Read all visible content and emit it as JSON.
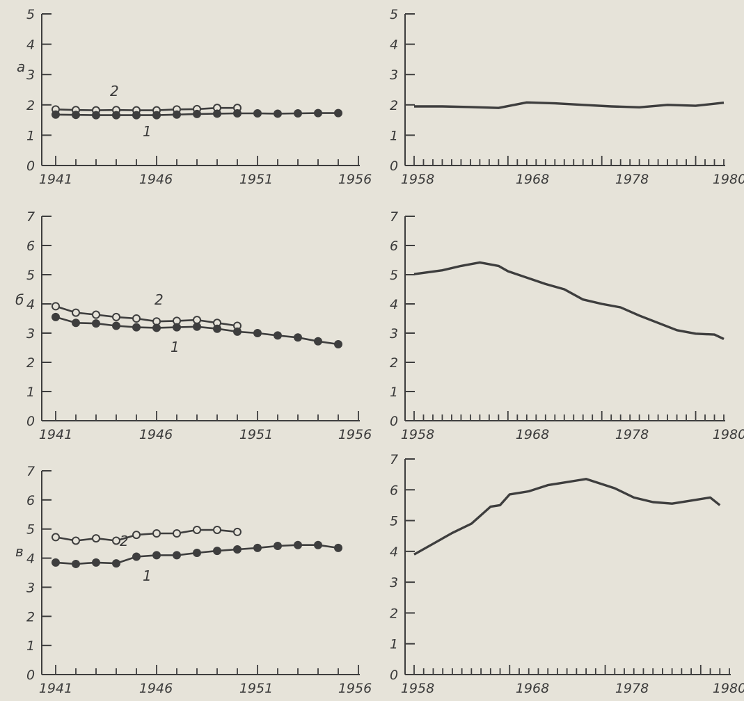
{
  "colors": {
    "ink": "#3e3e3e",
    "paper": "#e6e3d9"
  },
  "chart_data": [
    {
      "type": "line",
      "panel": "a",
      "letter": "a",
      "grid": false,
      "x_ticks": [
        1941,
        1946,
        1951,
        1956
      ],
      "y_ticks": [
        0,
        1,
        2,
        3,
        4,
        5
      ],
      "xlim": [
        1941,
        1956
      ],
      "ylim": [
        0,
        5
      ],
      "series": [
        {
          "tag": "2",
          "marker": "open",
          "points": [
            [
              1941,
              1.85
            ],
            [
              1942,
              1.83
            ],
            [
              1943,
              1.82
            ],
            [
              1944,
              1.83
            ],
            [
              1945,
              1.82
            ],
            [
              1946,
              1.82
            ],
            [
              1947,
              1.85
            ],
            [
              1948,
              1.86
            ],
            [
              1949,
              1.9
            ],
            [
              1950,
              1.9
            ]
          ]
        },
        {
          "tag": "1",
          "marker": "filled",
          "points": [
            [
              1941,
              1.68
            ],
            [
              1942,
              1.67
            ],
            [
              1943,
              1.66
            ],
            [
              1944,
              1.66
            ],
            [
              1945,
              1.66
            ],
            [
              1946,
              1.66
            ],
            [
              1947,
              1.68
            ],
            [
              1948,
              1.7
            ],
            [
              1949,
              1.71
            ],
            [
              1950,
              1.72
            ],
            [
              1951,
              1.72
            ],
            [
              1952,
              1.71
            ],
            [
              1953,
              1.72
            ],
            [
              1954,
              1.73
            ],
            [
              1955,
              1.73
            ]
          ]
        }
      ]
    },
    {
      "type": "line",
      "panel": "b",
      "letter": "б",
      "grid": false,
      "x_ticks": [
        1941,
        1946,
        1951,
        1956
      ],
      "y_ticks": [
        0,
        1,
        2,
        3,
        4,
        5,
        6,
        7
      ],
      "xlim": [
        1941,
        1956
      ],
      "ylim": [
        0,
        7
      ],
      "series": [
        {
          "tag": "2",
          "marker": "open",
          "points": [
            [
              1941,
              3.92
            ],
            [
              1942,
              3.7
            ],
            [
              1943,
              3.63
            ],
            [
              1944,
              3.55
            ],
            [
              1945,
              3.5
            ],
            [
              1946,
              3.4
            ],
            [
              1947,
              3.42
            ],
            [
              1948,
              3.45
            ],
            [
              1949,
              3.35
            ],
            [
              1950,
              3.25
            ]
          ]
        },
        {
          "tag": "1",
          "marker": "filled",
          "points": [
            [
              1941,
              3.55
            ],
            [
              1942,
              3.35
            ],
            [
              1943,
              3.33
            ],
            [
              1944,
              3.25
            ],
            [
              1945,
              3.2
            ],
            [
              1946,
              3.18
            ],
            [
              1947,
              3.2
            ],
            [
              1948,
              3.22
            ],
            [
              1949,
              3.15
            ],
            [
              1950,
              3.05
            ],
            [
              1951,
              3.0
            ],
            [
              1952,
              2.92
            ],
            [
              1953,
              2.85
            ],
            [
              1954,
              2.72
            ],
            [
              1955,
              2.62
            ]
          ]
        }
      ]
    },
    {
      "type": "line",
      "panel": "c",
      "letter": "в",
      "grid": false,
      "x_ticks": [
        1941,
        1946,
        1951,
        1956
      ],
      "y_ticks": [
        0,
        1,
        2,
        3,
        4,
        5,
        6,
        7
      ],
      "xlim": [
        1941,
        1956
      ],
      "ylim": [
        0,
        7
      ],
      "series": [
        {
          "tag": "2",
          "marker": "open",
          "points": [
            [
              1941,
              4.72
            ],
            [
              1942,
              4.6
            ],
            [
              1943,
              4.68
            ],
            [
              1944,
              4.6
            ],
            [
              1945,
              4.8
            ],
            [
              1946,
              4.85
            ],
            [
              1947,
              4.85
            ],
            [
              1948,
              4.97
            ],
            [
              1949,
              4.97
            ],
            [
              1950,
              4.9
            ]
          ]
        },
        {
          "tag": "1",
          "marker": "filled",
          "points": [
            [
              1941,
              3.85
            ],
            [
              1942,
              3.8
            ],
            [
              1943,
              3.85
            ],
            [
              1944,
              3.82
            ],
            [
              1945,
              4.05
            ],
            [
              1946,
              4.1
            ],
            [
              1947,
              4.1
            ],
            [
              1948,
              4.18
            ],
            [
              1949,
              4.25
            ],
            [
              1950,
              4.3
            ],
            [
              1951,
              4.35
            ],
            [
              1952,
              4.42
            ],
            [
              1953,
              4.45
            ],
            [
              1954,
              4.45
            ],
            [
              1955,
              4.35
            ]
          ]
        }
      ]
    },
    {
      "type": "line",
      "panel": "d",
      "grid": false,
      "x_ticks": [
        1958,
        1968,
        1978,
        1980
      ],
      "y_ticks": [
        0,
        1,
        2,
        3,
        4,
        5
      ],
      "xlim": [
        1958,
        1991
      ],
      "ylim": [
        0,
        5
      ],
      "series": [
        {
          "marker": "none",
          "points": [
            [
              1958,
              1.95
            ],
            [
              1961,
              1.95
            ],
            [
              1964,
              1.93
            ],
            [
              1967,
              1.9
            ],
            [
              1970,
              2.08
            ],
            [
              1973,
              2.05
            ],
            [
              1976,
              2.0
            ],
            [
              1979,
              1.95
            ],
            [
              1982,
              1.92
            ],
            [
              1985,
              2.0
            ],
            [
              1988,
              1.97
            ],
            [
              1991,
              2.07
            ]
          ]
        }
      ]
    },
    {
      "type": "line",
      "panel": "e",
      "grid": false,
      "x_ticks": [
        1958,
        1968,
        1978,
        1980
      ],
      "y_ticks": [
        0,
        1,
        2,
        3,
        4,
        5,
        6,
        7
      ],
      "xlim": [
        1958,
        1991
      ],
      "ylim": [
        0,
        7
      ],
      "series": [
        {
          "marker": "none",
          "points": [
            [
              1958,
              5.02
            ],
            [
              1961,
              5.15
            ],
            [
              1963,
              5.3
            ],
            [
              1965,
              5.42
            ],
            [
              1967,
              5.3
            ],
            [
              1968,
              5.12
            ],
            [
              1970,
              4.9
            ],
            [
              1972,
              4.68
            ],
            [
              1974,
              4.5
            ],
            [
              1976,
              4.15
            ],
            [
              1978,
              4.0
            ],
            [
              1980,
              3.88
            ],
            [
              1982,
              3.6
            ],
            [
              1984,
              3.35
            ],
            [
              1986,
              3.1
            ],
            [
              1988,
              2.98
            ],
            [
              1990,
              2.95
            ],
            [
              1991,
              2.8
            ]
          ]
        }
      ]
    },
    {
      "type": "line",
      "panel": "f",
      "grid": false,
      "x_ticks": [
        1958,
        1968,
        1978,
        1980
      ],
      "y_ticks": [
        0,
        1,
        2,
        3,
        4,
        5,
        6,
        7
      ],
      "xlim": [
        1958,
        1991
      ],
      "ylim": [
        0,
        7
      ],
      "series": [
        {
          "marker": "none",
          "points": [
            [
              1958,
              3.9
            ],
            [
              1960,
              4.25
            ],
            [
              1962,
              4.6
            ],
            [
              1964,
              4.9
            ],
            [
              1966,
              5.45
            ],
            [
              1967,
              5.5
            ],
            [
              1968,
              5.85
            ],
            [
              1970,
              5.95
            ],
            [
              1972,
              6.15
            ],
            [
              1973,
              6.2
            ],
            [
              1975,
              6.3
            ],
            [
              1976,
              6.35
            ],
            [
              1978,
              6.15
            ],
            [
              1979,
              6.05
            ],
            [
              1981,
              5.75
            ],
            [
              1983,
              5.6
            ],
            [
              1985,
              5.55
            ],
            [
              1987,
              5.65
            ],
            [
              1989,
              5.75
            ],
            [
              1990,
              5.5
            ]
          ]
        }
      ]
    }
  ]
}
